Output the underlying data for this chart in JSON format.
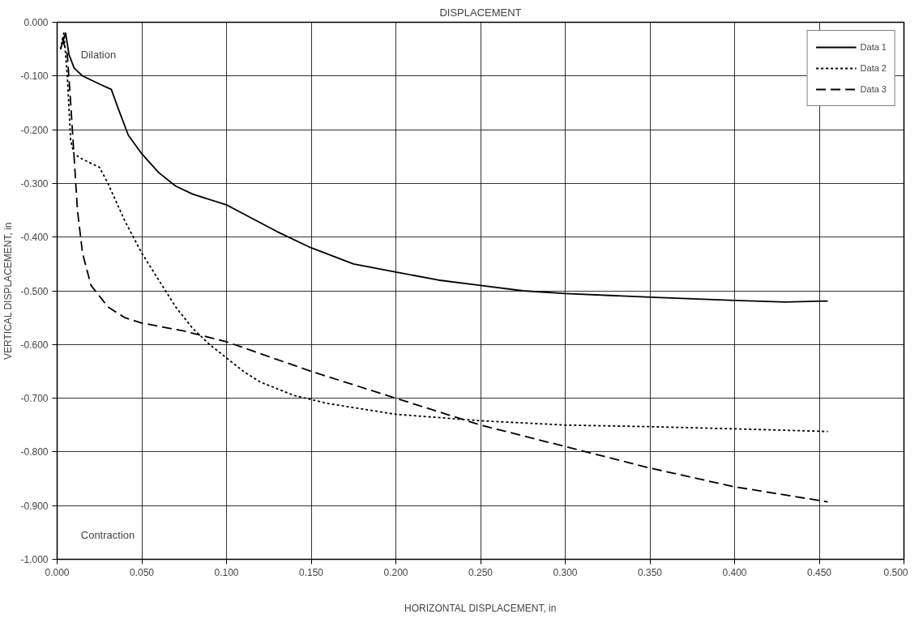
{
  "chart_data": {
    "type": "line",
    "title": "DISPLACEMENT",
    "xlabel": "HORIZONTAL DISPLACEMENT, in",
    "ylabel": "VERTICAL DISPLACEMENT, in",
    "annotations": [
      "Dilation",
      "Contraction"
    ],
    "xlim": [
      0,
      0.5
    ],
    "ylim": [
      -1,
      0
    ],
    "xticks": [
      {
        "value": 0,
        "label": "0.000"
      },
      {
        "value": 0.05,
        "label": "0.050"
      },
      {
        "value": 0.1,
        "label": "0.100"
      },
      {
        "value": 0.15,
        "label": "0.150"
      },
      {
        "value": 0.2,
        "label": "0.200"
      },
      {
        "value": 0.25,
        "label": "0.250"
      },
      {
        "value": 0.3,
        "label": "0.300"
      },
      {
        "value": 0.35,
        "label": "0.350"
      },
      {
        "value": 0.4,
        "label": "0.400"
      },
      {
        "value": 0.45,
        "label": "0.450"
      },
      {
        "value": 0.5,
        "label": "0.500"
      }
    ],
    "yticks": [
      {
        "value": 0,
        "label": "0.000"
      },
      {
        "value": -0.1,
        "label": "-0.100"
      },
      {
        "value": -0.2,
        "label": "-0.200"
      },
      {
        "value": -0.3,
        "label": "-0.300"
      },
      {
        "value": -0.4,
        "label": "-0.400"
      },
      {
        "value": -0.5,
        "label": "-0.500"
      },
      {
        "value": -0.6,
        "label": "-0.600"
      },
      {
        "value": -0.7,
        "label": "-0.700"
      },
      {
        "value": -0.8,
        "label": "-0.800"
      },
      {
        "value": -0.9,
        "label": "-0.900"
      },
      {
        "value": -1,
        "label": "-1.000"
      }
    ],
    "grid": true,
    "legend": "top right",
    "marker": "none",
    "series": [
      {
        "name": "Data 1",
        "color": "#000000",
        "line_style": "solid",
        "x": [
          0.002,
          0.005,
          0.007,
          0.01,
          0.015,
          0.025,
          0.032,
          0.036,
          0.042,
          0.05,
          0.06,
          0.07,
          0.08,
          0.1,
          0.115,
          0.13,
          0.15,
          0.175,
          0.2,
          0.225,
          0.25,
          0.275,
          0.3,
          0.35,
          0.4,
          0.43,
          0.455
        ],
        "values": [
          -0.05,
          -0.02,
          -0.06,
          -0.085,
          -0.1,
          -0.115,
          -0.125,
          -0.16,
          -0.21,
          -0.245,
          -0.28,
          -0.305,
          -0.32,
          -0.34,
          -0.365,
          -0.39,
          -0.42,
          -0.45,
          -0.465,
          -0.48,
          -0.49,
          -0.5,
          -0.505,
          -0.512,
          -0.518,
          -0.521,
          -0.519
        ]
      },
      {
        "name": "Data 2",
        "color": "#000000",
        "line_style": "dotted",
        "x": [
          0.002,
          0.004,
          0.006,
          0.008,
          0.01,
          0.015,
          0.025,
          0.03,
          0.04,
          0.05,
          0.06,
          0.07,
          0.08,
          0.09,
          0.1,
          0.11,
          0.12,
          0.14,
          0.16,
          0.2,
          0.25,
          0.3,
          0.35,
          0.4,
          0.455
        ],
        "values": [
          -0.05,
          -0.02,
          -0.1,
          -0.22,
          -0.245,
          -0.255,
          -0.27,
          -0.3,
          -0.37,
          -0.43,
          -0.48,
          -0.53,
          -0.57,
          -0.6,
          -0.625,
          -0.65,
          -0.67,
          -0.695,
          -0.71,
          -0.73,
          -0.742,
          -0.75,
          -0.753,
          -0.757,
          -0.762
        ]
      },
      {
        "name": "Data 3",
        "color": "#000000",
        "line_style": "dashed",
        "x": [
          0.003,
          0.006,
          0.008,
          0.01,
          0.012,
          0.015,
          0.02,
          0.03,
          0.04,
          0.05,
          0.075,
          0.1,
          0.15,
          0.2,
          0.25,
          0.3,
          0.35,
          0.4,
          0.455
        ],
        "values": [
          -0.03,
          -0.06,
          -0.15,
          -0.25,
          -0.35,
          -0.43,
          -0.49,
          -0.53,
          -0.55,
          -0.56,
          -0.575,
          -0.595,
          -0.65,
          -0.7,
          -0.75,
          -0.79,
          -0.83,
          -0.865,
          -0.893
        ]
      }
    ]
  }
}
